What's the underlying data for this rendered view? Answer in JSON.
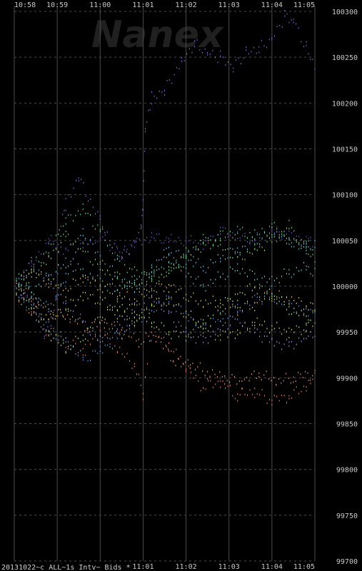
{
  "chart_data": {
    "type": "scatter",
    "title": "",
    "watermark": "Nanex",
    "footer_label": "20131022~c_ALL~1s Intv~ Bids *",
    "xlabel": "",
    "ylabel": "",
    "x_ticks": [
      "10:58",
      "10:59",
      "11:00",
      "11:01",
      "11:02",
      "11:03",
      "11:04",
      "11:05"
    ],
    "y_ticks": [
      "100300",
      "100250",
      "100200",
      "100150",
      "100100",
      "100050",
      "100000",
      "99950",
      "99900",
      "99850",
      "99800",
      "99750",
      "99700"
    ],
    "xlim": [
      "10:58",
      "11:05"
    ],
    "ylim": [
      99700,
      100300
    ],
    "grid": true,
    "background": "#000000",
    "gridline_color": "#4a4a4a",
    "series": [
      {
        "color": "#8a6be0",
        "values": [
          [
            0.05,
            99995
          ],
          [
            0.3,
            99990
          ],
          [
            0.55,
            99975
          ],
          [
            0.7,
            99945
          ],
          [
            0.86,
            99960
          ],
          [
            1.0,
            99990
          ],
          [
            1.05,
            100060
          ],
          [
            1.2,
            100090
          ],
          [
            1.5,
            100120
          ],
          [
            2.0,
            100070
          ],
          [
            2.5,
            100030
          ],
          [
            2.95,
            100060
          ],
          [
            3.0,
            100090
          ],
          [
            3.05,
            100170
          ],
          [
            3.2,
            100205
          ],
          [
            3.5,
            100215
          ],
          [
            3.9,
            100245
          ],
          [
            4.2,
            100265
          ],
          [
            4.5,
            100255
          ],
          [
            4.8,
            100250
          ],
          [
            5.1,
            100240
          ],
          [
            5.4,
            100255
          ],
          [
            5.7,
            100260
          ],
          [
            6.0,
            100270
          ],
          [
            6.3,
            100295
          ],
          [
            6.5,
            100290
          ],
          [
            6.8,
            100260
          ],
          [
            7.0,
            100240
          ]
        ]
      },
      {
        "color": "#6a55c8",
        "values": [
          [
            0.1,
            100005
          ],
          [
            0.4,
            100020
          ],
          [
            0.8,
            100050
          ],
          [
            1.2,
            100040
          ],
          [
            1.6,
            100045
          ],
          [
            2.0,
            100055
          ],
          [
            2.4,
            100035
          ],
          [
            2.8,
            100045
          ],
          [
            3.2,
            100055
          ],
          [
            3.6,
            100050
          ],
          [
            4.0,
            100050
          ],
          [
            4.4,
            100045
          ],
          [
            4.8,
            100060
          ],
          [
            5.2,
            100055
          ],
          [
            5.6,
            100050
          ],
          [
            6.0,
            100060
          ],
          [
            6.4,
            100055
          ],
          [
            6.8,
            100050
          ],
          [
            7.0,
            100045
          ]
        ]
      },
      {
        "color": "#f08070",
        "values": [
          [
            0.05,
            99990
          ],
          [
            0.4,
            99970
          ],
          [
            0.8,
            99950
          ],
          [
            1.2,
            99940
          ],
          [
            1.6,
            99930
          ],
          [
            2.0,
            99950
          ],
          [
            2.4,
            99930
          ],
          [
            2.8,
            99915
          ],
          [
            3.0,
            99880
          ],
          [
            3.2,
            99955
          ],
          [
            3.6,
            99935
          ],
          [
            4.0,
            99910
          ],
          [
            4.4,
            99890
          ],
          [
            4.8,
            99895
          ],
          [
            5.2,
            99880
          ],
          [
            5.6,
            99885
          ],
          [
            6.0,
            99875
          ],
          [
            6.4,
            99880
          ],
          [
            6.8,
            99890
          ],
          [
            7.0,
            99900
          ]
        ]
      },
      {
        "color": "#f0a070",
        "values": [
          [
            0.1,
            100000
          ],
          [
            0.5,
            99985
          ],
          [
            0.9,
            99970
          ],
          [
            1.3,
            99965
          ],
          [
            1.7,
            99955
          ],
          [
            2.1,
            99960
          ],
          [
            2.5,
            99950
          ],
          [
            2.9,
            99940
          ],
          [
            3.3,
            99945
          ],
          [
            3.7,
            99920
          ],
          [
            4.1,
            99915
          ],
          [
            4.5,
            99905
          ],
          [
            4.9,
            99900
          ],
          [
            5.3,
            99895
          ],
          [
            5.7,
            99905
          ],
          [
            6.1,
            99895
          ],
          [
            6.5,
            99900
          ],
          [
            7.0,
            99905
          ]
        ]
      },
      {
        "color": "#60c8f0",
        "values": [
          [
            0.05,
            100010
          ],
          [
            0.4,
            99990
          ],
          [
            0.8,
            99975
          ],
          [
            1.2,
            100010
          ],
          [
            1.6,
            100060
          ],
          [
            2.0,
            100030
          ],
          [
            2.4,
            100010
          ],
          [
            2.8,
            99995
          ],
          [
            3.2,
            100020
          ],
          [
            3.6,
            100040
          ],
          [
            4.0,
            100030
          ],
          [
            4.4,
            100020
          ],
          [
            4.8,
            100030
          ],
          [
            5.2,
            100040
          ],
          [
            5.6,
            100045
          ],
          [
            6.0,
            100060
          ],
          [
            6.4,
            100050
          ],
          [
            6.8,
            100040
          ],
          [
            7.0,
            100045
          ]
        ]
      },
      {
        "color": "#50a0f0",
        "values": [
          [
            0.05,
            99995
          ],
          [
            0.4,
            99975
          ],
          [
            0.8,
            99955
          ],
          [
            1.2,
            99940
          ],
          [
            1.6,
            99920
          ],
          [
            2.0,
            99930
          ],
          [
            2.4,
            99945
          ],
          [
            2.8,
            99960
          ],
          [
            3.2,
            99975
          ],
          [
            3.6,
            99985
          ],
          [
            4.0,
            99970
          ],
          [
            4.4,
            99955
          ],
          [
            4.8,
            99965
          ],
          [
            5.2,
            99975
          ],
          [
            5.6,
            99985
          ],
          [
            6.0,
            99990
          ],
          [
            6.4,
            99980
          ],
          [
            6.8,
            99970
          ],
          [
            7.0,
            99975
          ]
        ]
      },
      {
        "color": "#90e870",
        "values": [
          [
            0.05,
            100000
          ],
          [
            0.4,
            100010
          ],
          [
            0.8,
            100030
          ],
          [
            1.2,
            100055
          ],
          [
            1.6,
            100040
          ],
          [
            2.0,
            100020
          ],
          [
            2.4,
            100010
          ],
          [
            2.8,
            100000
          ],
          [
            3.2,
            100005
          ],
          [
            3.6,
            100015
          ],
          [
            4.0,
            100035
          ],
          [
            4.4,
            100050
          ],
          [
            4.8,
            100045
          ],
          [
            5.2,
            100030
          ],
          [
            5.6,
            100040
          ],
          [
            6.0,
            100050
          ],
          [
            6.4,
            100065
          ],
          [
            6.8,
            100040
          ],
          [
            7.0,
            100030
          ]
        ]
      },
      {
        "color": "#60e0a0",
        "values": [
          [
            0.05,
            100005
          ],
          [
            0.4,
            100020
          ],
          [
            0.8,
            100040
          ],
          [
            1.2,
            100070
          ],
          [
            1.6,
            100085
          ],
          [
            2.0,
            100060
          ],
          [
            2.4,
            100030
          ],
          [
            2.8,
            100015
          ],
          [
            3.2,
            100010
          ],
          [
            3.6,
            100020
          ],
          [
            4.0,
            100030
          ],
          [
            4.4,
            100045
          ],
          [
            4.8,
            100055
          ],
          [
            5.2,
            100060
          ],
          [
            5.6,
            100055
          ],
          [
            6.0,
            100065
          ],
          [
            6.4,
            100050
          ],
          [
            6.8,
            100045
          ],
          [
            7.0,
            100040
          ]
        ]
      },
      {
        "color": "#e0e060",
        "values": [
          [
            0.05,
            99995
          ],
          [
            0.4,
            99980
          ],
          [
            0.8,
            99965
          ],
          [
            1.2,
            99975
          ],
          [
            1.6,
            99990
          ],
          [
            2.0,
            99985
          ],
          [
            2.4,
            99970
          ],
          [
            2.8,
            99960
          ],
          [
            3.2,
            99980
          ],
          [
            3.6,
            99985
          ],
          [
            4.0,
            99970
          ],
          [
            4.4,
            99955
          ],
          [
            4.8,
            99945
          ],
          [
            5.2,
            99950
          ],
          [
            5.6,
            99960
          ],
          [
            6.0,
            99955
          ],
          [
            6.4,
            99950
          ],
          [
            6.8,
            99955
          ],
          [
            7.0,
            99960
          ]
        ]
      },
      {
        "color": "#f0d060",
        "values": [
          [
            0.05,
            100005
          ],
          [
            0.4,
            100015
          ],
          [
            0.8,
            100005
          ],
          [
            1.2,
            99995
          ],
          [
            1.6,
            100010
          ],
          [
            2.0,
            100000
          ],
          [
            2.4,
            99990
          ],
          [
            2.8,
            99985
          ],
          [
            3.2,
            99995
          ],
          [
            3.6,
            100000
          ],
          [
            4.0,
            99990
          ],
          [
            4.4,
            99980
          ],
          [
            4.8,
            99985
          ],
          [
            5.2,
            99975
          ],
          [
            5.6,
            99980
          ],
          [
            6.0,
            99990
          ],
          [
            6.4,
            99985
          ],
          [
            6.8,
            99980
          ],
          [
            7.0,
            99975
          ]
        ]
      },
      {
        "color": "#b0f080",
        "values": [
          [
            0.05,
            99990
          ],
          [
            0.4,
            99975
          ],
          [
            0.8,
            99950
          ],
          [
            1.2,
            99930
          ],
          [
            1.6,
            99945
          ],
          [
            2.0,
            99965
          ],
          [
            2.4,
            99980
          ],
          [
            2.8,
            99970
          ],
          [
            3.2,
            99960
          ],
          [
            3.6,
            99950
          ],
          [
            4.0,
            99945
          ],
          [
            4.4,
            99960
          ],
          [
            4.8,
            99975
          ],
          [
            5.2,
            99990
          ],
          [
            5.6,
            100000
          ],
          [
            6.0,
            99990
          ],
          [
            6.4,
            99975
          ],
          [
            6.8,
            99965
          ],
          [
            7.0,
            99970
          ]
        ]
      },
      {
        "color": "#70d8d8",
        "values": [
          [
            0.05,
            100000
          ],
          [
            0.4,
            99995
          ],
          [
            0.8,
            100010
          ],
          [
            1.2,
            100025
          ],
          [
            1.6,
            100015
          ],
          [
            2.0,
            100005
          ],
          [
            2.4,
            99995
          ],
          [
            2.8,
            100005
          ],
          [
            3.2,
            100015
          ],
          [
            3.6,
            100030
          ],
          [
            4.0,
            100015
          ],
          [
            4.4,
            100000
          ],
          [
            4.8,
            100010
          ],
          [
            5.2,
            100020
          ],
          [
            5.6,
            100010
          ],
          [
            6.0,
            100005
          ],
          [
            6.4,
            100015
          ],
          [
            6.8,
            100020
          ],
          [
            7.0,
            100015
          ]
        ]
      },
      {
        "color": "#a0a0f0",
        "values": [
          [
            0.05,
            100000
          ],
          [
            0.4,
            100025
          ],
          [
            0.8,
            100005
          ],
          [
            1.2,
            99980
          ],
          [
            1.6,
            99960
          ],
          [
            2.0,
            99940
          ],
          [
            2.4,
            99955
          ],
          [
            2.8,
            99975
          ],
          [
            3.2,
            99990
          ],
          [
            3.6,
            99970
          ],
          [
            4.0,
            99950
          ],
          [
            4.4,
            99940
          ],
          [
            4.8,
            99955
          ],
          [
            5.2,
            99965
          ],
          [
            5.6,
            99950
          ],
          [
            6.0,
            99940
          ],
          [
            6.4,
            99935
          ],
          [
            6.8,
            99945
          ],
          [
            7.0,
            99950
          ]
        ]
      }
    ]
  }
}
